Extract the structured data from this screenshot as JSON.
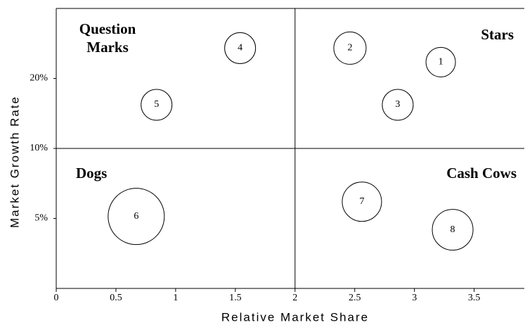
{
  "chart_data": {
    "type": "bubble",
    "xlabel": "Relative Market Share",
    "ylabel": "Market Growth Rate",
    "annotations": [
      "Question Marks",
      "Stars",
      "Dogs",
      "Cash Cows"
    ],
    "labels": [
      "1",
      "2",
      "3",
      "4",
      "5",
      "6",
      "7",
      "8"
    ],
    "x": [
      3.22,
      2.46,
      2.86,
      1.54,
      0.84,
      0.67,
      2.56,
      3.32
    ],
    "values": [
      23.5,
      27.0,
      15.4,
      27.0,
      15.4,
      5.1,
      5.9,
      4.47
    ],
    "sizes": [
      21,
      23,
      22,
      22,
      22,
      40,
      28,
      29
    ],
    "xlim": [
      0,
      3.92
    ],
    "ylim": [
      2.5,
      40
    ],
    "ylog": true,
    "xticks": [
      0,
      0.5,
      1,
      1.5,
      2,
      2.5,
      3,
      3.5
    ],
    "yticks": [
      {
        "value": 5,
        "label": "5%"
      },
      {
        "value": 10,
        "label": "10%"
      },
      {
        "value": 20,
        "label": "20%"
      }
    ],
    "dividers": {
      "x": 2,
      "y": 10
    },
    "color": "#000000"
  }
}
